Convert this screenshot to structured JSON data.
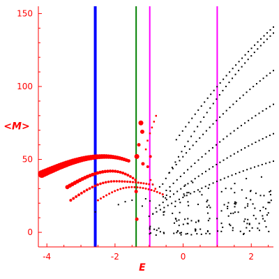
{
  "colors": {
    "axis": "#ff0000",
    "blue_line": "#0000ff",
    "green_line": "#008000",
    "magenta_line": "#ff00ff",
    "red_points": "#ff0000",
    "black_points": "#000000",
    "dark_points": "#993300"
  },
  "chart_data": {
    "type": "scatter",
    "title": "",
    "xlabel": "E",
    "ylabel": "<M>",
    "xlim": [
      -4.25,
      2.65
    ],
    "ylim": [
      -10,
      155
    ],
    "xticks": [
      -4,
      -2,
      0,
      2
    ],
    "yticks": [
      0,
      50,
      100,
      150
    ],
    "grid": false,
    "vlines": [
      {
        "x": -2.58,
        "color": "#0000ff"
      },
      {
        "x": -1.38,
        "color": "#008000"
      },
      {
        "x": -0.98,
        "color": "#ff00ff"
      },
      {
        "x": 1.0,
        "color": "#ff00ff"
      }
    ],
    "red_series": [
      {
        "name": "",
        "x_start": -4.15,
        "x_end": -1.6,
        "y_left": 40,
        "y_peak": 52,
        "x_peak": -2.3,
        "y_right": 49,
        "n": 40,
        "size_start": 5.5,
        "size_end": 2.5
      },
      {
        "name": "",
        "x_start": -3.4,
        "x_end": -1.4,
        "y_left": 31,
        "y_peak": 42,
        "x_peak": -2.1,
        "y_right": 36,
        "n": 28,
        "size_start": 3.0,
        "size_end": 1.8
      },
      {
        "name": "",
        "x_start": -3.3,
        "x_end": -1.0,
        "y_left": 22,
        "y_peak": 35,
        "x_peak": -2.0,
        "y_right": 33,
        "n": 30,
        "size_start": 2.0,
        "size_end": 1.5
      },
      {
        "name": "",
        "x_start": -2.5,
        "x_end": -0.6,
        "y_left": 22,
        "y_peak": 31,
        "x_peak": -1.5,
        "y_right": 26,
        "n": 24,
        "size_start": 1.5,
        "size_end": 1.5
      }
    ],
    "red_highlights": [
      {
        "x": -1.24,
        "y": 75,
        "r": 3.5
      },
      {
        "x": -1.2,
        "y": 69,
        "r": 3.0
      },
      {
        "x": -1.3,
        "y": 60,
        "r": 2.5
      },
      {
        "x": -1.36,
        "y": 52,
        "r": 3.5
      },
      {
        "x": -1.18,
        "y": 47,
        "r": 2.5
      },
      {
        "x": -1.38,
        "y": 28,
        "r": 2.5
      },
      {
        "x": -1.36,
        "y": 9,
        "r": 2.5
      },
      {
        "x": -1.04,
        "y": 45,
        "r": 2.0
      },
      {
        "x": -0.96,
        "y": 52,
        "r": 2.0
      }
    ],
    "black_curves": [
      {
        "name": "",
        "y_at_0": 57,
        "slope": 38,
        "curv": -3,
        "x_start": -0.6,
        "x_end": 2.65,
        "n": 36
      },
      {
        "name": "",
        "y_at_0": 70,
        "slope": 32,
        "curv": -2,
        "x_start": -0.2,
        "x_end": 2.65,
        "n": 32
      },
      {
        "name": "",
        "y_at_0": 52,
        "slope": 27,
        "curv": -1.8,
        "x_start": -0.4,
        "x_end": 2.65,
        "n": 32
      },
      {
        "name": "",
        "y_at_0": 40,
        "slope": 22,
        "curv": -1.5,
        "x_start": -0.6,
        "x_end": 2.65,
        "n": 32
      },
      {
        "name": "",
        "y_at_0": 31,
        "slope": 17,
        "curv": -1.2,
        "x_start": -0.8,
        "x_end": 2.65,
        "n": 34
      },
      {
        "name": "",
        "y_at_0": 24,
        "slope": 12,
        "curv": -1,
        "x_start": -1.0,
        "x_end": 2.65,
        "n": 34
      }
    ],
    "black_scatter_region": {
      "x_min": -1.0,
      "x_max": 2.6,
      "y_min": -2,
      "y_max": 35,
      "n": 160
    },
    "red_curve_dots": [
      {
        "x": -1.05,
        "y": 63
      },
      {
        "x": -0.98,
        "y": 68
      },
      {
        "x": -0.92,
        "y": 72
      },
      {
        "x": -0.86,
        "y": 76
      },
      {
        "x": -0.8,
        "y": 80
      },
      {
        "x": -1.1,
        "y": 57
      },
      {
        "x": -0.96,
        "y": 36
      },
      {
        "x": -0.9,
        "y": 33
      },
      {
        "x": -0.82,
        "y": 30
      }
    ]
  }
}
